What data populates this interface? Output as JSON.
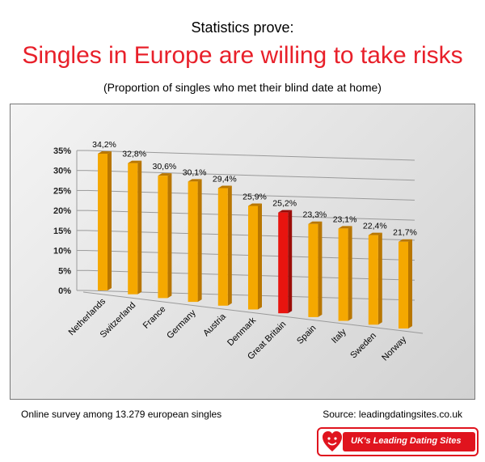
{
  "header": {
    "kicker": "Statistics prove:",
    "headline": "Singles in Europe are willing to take risks",
    "subtitle": "(Proportion of singles who met their blind date at home)"
  },
  "chart_data": {
    "type": "bar",
    "categories": [
      "Netherlands",
      "Switzerland",
      "France",
      "Germany",
      "Austria",
      "Denmark",
      "Great Britain",
      "Spain",
      "Italy",
      "Sweden",
      "Norway"
    ],
    "values": [
      34.2,
      32.8,
      30.6,
      30.1,
      29.4,
      25.9,
      25.2,
      23.3,
      23.1,
      22.4,
      21.7
    ],
    "data_labels": [
      "34,2%",
      "32,8%",
      "30,6%",
      "30,1%",
      "29,4%",
      "25,9%",
      "25,2%",
      "23,3%",
      "23,1%",
      "22,4%",
      "21,7%"
    ],
    "y_ticks": [
      "0%",
      "5%",
      "10%",
      "15%",
      "20%",
      "25%",
      "30%",
      "35%"
    ],
    "ylim": [
      0,
      35
    ],
    "grid": true,
    "highlight_category": "Great Britain",
    "colors": {
      "bar": "#f5a800",
      "bar_side": "#b87600",
      "highlight": "#e8140f",
      "highlight_side": "#9a0c08",
      "grid": "#9a9a9a"
    }
  },
  "footer": {
    "note": "Online survey among 13.279 european singles",
    "source": "Source: leadingdatingsites.co.uk",
    "badge_text": "UK's Leading Dating Sites"
  }
}
